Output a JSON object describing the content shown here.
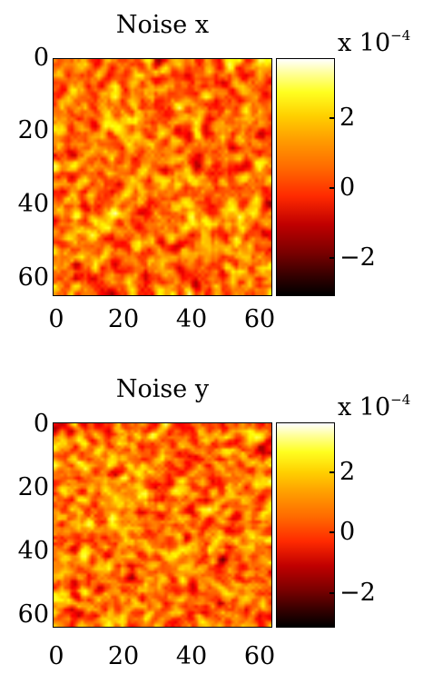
{
  "chart_data": [
    {
      "type": "heatmap",
      "title": "Noise x",
      "xlim": [
        0,
        65
      ],
      "ylim": [
        65,
        0
      ],
      "xticks": [
        "0",
        "20",
        "40",
        "60"
      ],
      "yticks": [
        "0",
        "20",
        "40",
        "60"
      ],
      "colorbar": {
        "colormap": "hot",
        "range": [
          -3.2,
          3.6
        ],
        "ticks": [
          "2",
          "0",
          "−2"
        ],
        "multiplier_base": "x 10",
        "multiplier_exp": "−4"
      },
      "grid": false
    },
    {
      "type": "heatmap",
      "title": "Noise y",
      "xlim": [
        0,
        65
      ],
      "ylim": [
        65,
        0
      ],
      "xticks": [
        "0",
        "20",
        "40",
        "60"
      ],
      "yticks": [
        "0",
        "20",
        "40",
        "60"
      ],
      "colorbar": {
        "colormap": "hot",
        "range": [
          -3.2,
          3.6
        ],
        "ticks": [
          "2",
          "0",
          "−2"
        ],
        "multiplier_base": "x 10",
        "multiplier_exp": "−4"
      },
      "grid": false
    }
  ]
}
